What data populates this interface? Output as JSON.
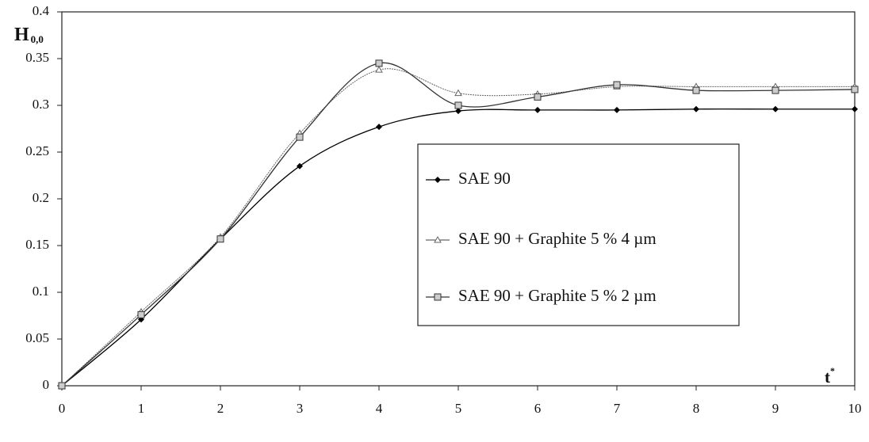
{
  "chart_data": {
    "type": "line",
    "y_label": "H",
    "y_label_subscript": "0,0",
    "x_label": "t",
    "x_label_superscript": "*",
    "x": [
      0,
      1,
      2,
      3,
      4,
      5,
      6,
      7,
      8,
      9,
      10
    ],
    "xlim": [
      0,
      10
    ],
    "xticks": [
      0,
      1,
      2,
      3,
      4,
      5,
      6,
      7,
      8,
      9,
      10
    ],
    "ylim": [
      0,
      0.4
    ],
    "yticks": [
      0,
      0.05,
      0.1,
      0.15,
      0.2,
      0.25,
      0.3,
      0.35,
      0.4
    ],
    "grid": false,
    "legend": "right",
    "series": [
      {
        "name": "SAE 90",
        "color": "#000000",
        "marker": "diamond",
        "values": [
          0,
          0.071,
          0.157,
          0.235,
          0.277,
          0.294,
          0.295,
          0.295,
          0.296,
          0.296,
          0.296
        ]
      },
      {
        "name": "SAE 90 + Graphite 5 % 4 µm",
        "color": "#666666",
        "marker": "triangle",
        "values": [
          0,
          0.079,
          0.159,
          0.27,
          0.338,
          0.313,
          0.312,
          0.32,
          0.32,
          0.32,
          0.32
        ]
      },
      {
        "name": "SAE 90 + Graphite 5 % 2 µm",
        "color": "#333333",
        "marker": "square",
        "values": [
          0,
          0.076,
          0.157,
          0.266,
          0.345,
          0.3,
          0.309,
          0.322,
          0.316,
          0.316,
          0.317
        ]
      }
    ]
  }
}
